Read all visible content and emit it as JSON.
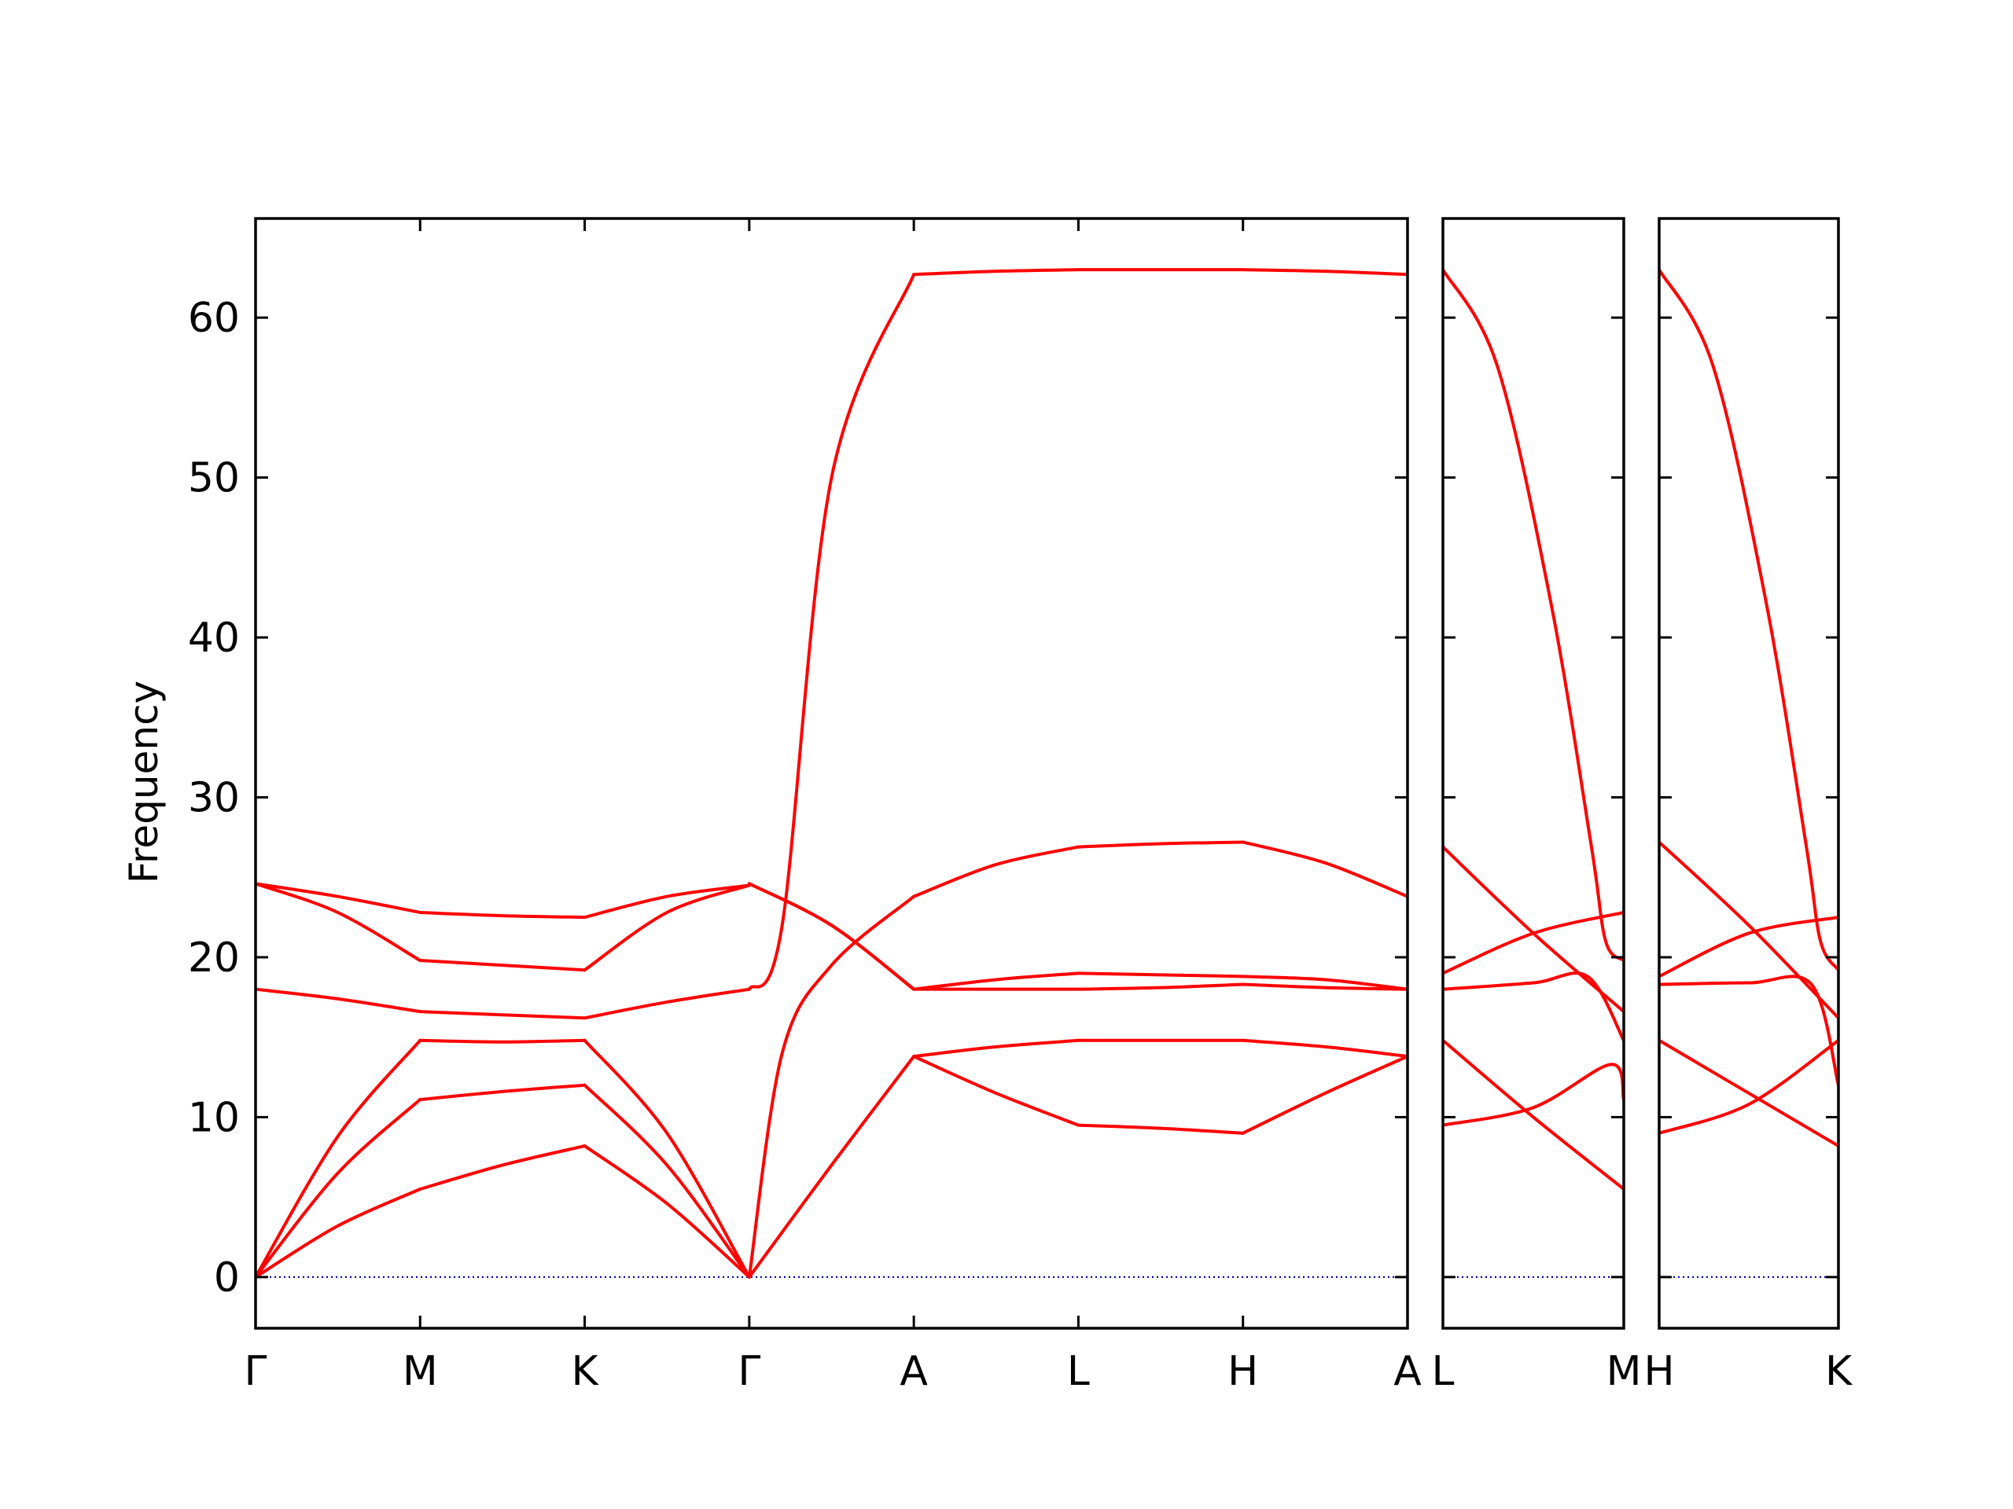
{
  "chart_data": {
    "type": "line",
    "ylabel": "Frequency",
    "ylim": [
      -3.2,
      66.2
    ],
    "yticks": [
      0,
      10,
      20,
      30,
      40,
      50,
      60
    ],
    "colors": {
      "bands": "#ff0000",
      "zero_line": "#0000cc",
      "axes": "#000000"
    },
    "grid": false,
    "panels": [
      {
        "x_labels": [
          "Γ",
          "M",
          "K",
          "Γ",
          "A",
          "L",
          "H",
          "A"
        ],
        "segments": [
          {
            "from": "Γ",
            "to": "M",
            "bands": [
              {
                "x": [
                  0,
                  0.5,
                  1
                ],
                "y": [
                  0,
                  3.2,
                  5.5
                ]
              },
              {
                "x": [
                  0,
                  0.5,
                  1
                ],
                "y": [
                  0,
                  6.5,
                  11.1
                ]
              },
              {
                "x": [
                  0,
                  0.5,
                  1
                ],
                "y": [
                  0,
                  8.8,
                  14.8
                ]
              },
              {
                "x": [
                  0,
                  0.5,
                  1
                ],
                "y": [
                  18.0,
                  17.4,
                  16.6
                ]
              },
              {
                "x": [
                  0,
                  0.5,
                  1
                ],
                "y": [
                  24.6,
                  22.8,
                  19.8
                ]
              },
              {
                "x": [
                  0,
                  0.5,
                  1
                ],
                "y": [
                  24.6,
                  23.8,
                  22.8
                ]
              }
            ]
          },
          {
            "from": "M",
            "to": "K",
            "bands": [
              {
                "x": [
                  0,
                  0.5,
                  1
                ],
                "y": [
                  5.5,
                  7.0,
                  8.2
                ]
              },
              {
                "x": [
                  0,
                  0.5,
                  1
                ],
                "y": [
                  11.1,
                  11.6,
                  12.0
                ]
              },
              {
                "x": [
                  0,
                  0.5,
                  1
                ],
                "y": [
                  14.8,
                  14.7,
                  14.8
                ]
              },
              {
                "x": [
                  0,
                  0.5,
                  1
                ],
                "y": [
                  16.6,
                  16.4,
                  16.2
                ]
              },
              {
                "x": [
                  0,
                  0.5,
                  1
                ],
                "y": [
                  19.8,
                  19.5,
                  19.2
                ]
              },
              {
                "x": [
                  0,
                  0.5,
                  1
                ],
                "y": [
                  22.8,
                  22.6,
                  22.5
                ]
              }
            ]
          },
          {
            "from": "K",
            "to": "Γ",
            "bands": [
              {
                "x": [
                  0,
                  0.5,
                  1
                ],
                "y": [
                  8.2,
                  4.6,
                  0
                ]
              },
              {
                "x": [
                  0,
                  0.5,
                  1
                ],
                "y": [
                  12.0,
                  7.0,
                  0
                ]
              },
              {
                "x": [
                  0,
                  0.5,
                  1
                ],
                "y": [
                  14.8,
                  9.0,
                  0
                ]
              },
              {
                "x": [
                  0,
                  0.5,
                  1
                ],
                "y": [
                  16.2,
                  17.2,
                  18.0
                ]
              },
              {
                "x": [
                  0,
                  0.5,
                  1
                ],
                "y": [
                  19.2,
                  22.8,
                  24.5
                ]
              },
              {
                "x": [
                  0,
                  0.5,
                  1
                ],
                "y": [
                  22.5,
                  23.8,
                  24.5
                ]
              }
            ]
          },
          {
            "from": "Γ",
            "to": "A",
            "bands": [
              {
                "x": [
                  0,
                  0.5,
                  1
                ],
                "y": [
                  0,
                  7.0,
                  13.8
                ]
              },
              {
                "x": [
                  0,
                  0.2,
                  0.5,
                  1
                ],
                "y": [
                  0,
                  14.0,
                  19.5,
                  23.8
                ]
              },
              {
                "x": [
                  0,
                  0.5,
                  1
                ],
                "y": [
                  24.6,
                  22.0,
                  18.0
                ]
              },
              {
                "x": [
                  0,
                  0.5,
                  1
                ],
                "y": [
                  24.6,
                  22.0,
                  18.0
                ]
              },
              {
                "x": [
                  0,
                  0.2,
                  0.5,
                  1
                ],
                "y": [
                  18.0,
                  22.0,
                  50.0,
                  62.7
                ]
              }
            ]
          },
          {
            "from": "A",
            "to": "L",
            "bands": [
              {
                "x": [
                  0,
                  0.5,
                  1
                ],
                "y": [
                  13.8,
                  11.5,
                  9.5
                ]
              },
              {
                "x": [
                  0,
                  0.5,
                  1
                ],
                "y": [
                  13.8,
                  14.4,
                  14.8
                ]
              },
              {
                "x": [
                  0,
                  0.5,
                  1
                ],
                "y": [
                  18.0,
                  18.0,
                  18.0
                ]
              },
              {
                "x": [
                  0,
                  0.5,
                  1
                ],
                "y": [
                  18.0,
                  18.6,
                  19.0
                ]
              },
              {
                "x": [
                  0,
                  0.5,
                  1
                ],
                "y": [
                  23.8,
                  25.8,
                  26.9
                ]
              },
              {
                "x": [
                  0,
                  0.5,
                  1
                ],
                "y": [
                  62.7,
                  62.9,
                  63.0
                ]
              }
            ]
          },
          {
            "from": "L",
            "to": "H",
            "bands": [
              {
                "x": [
                  0,
                  0.5,
                  1
                ],
                "y": [
                  9.5,
                  9.3,
                  9.0
                ]
              },
              {
                "x": [
                  0,
                  0.5,
                  1
                ],
                "y": [
                  14.8,
                  14.8,
                  14.8
                ]
              },
              {
                "x": [
                  0,
                  0.5,
                  1
                ],
                "y": [
                  18.0,
                  18.1,
                  18.3
                ]
              },
              {
                "x": [
                  0,
                  0.5,
                  1
                ],
                "y": [
                  19.0,
                  18.9,
                  18.8
                ]
              },
              {
                "x": [
                  0,
                  0.5,
                  1
                ],
                "y": [
                  26.9,
                  27.1,
                  27.2
                ]
              },
              {
                "x": [
                  0,
                  0.5,
                  1
                ],
                "y": [
                  63.0,
                  63.0,
                  63.0
                ]
              }
            ]
          },
          {
            "from": "H",
            "to": "A",
            "bands": [
              {
                "x": [
                  0,
                  0.5,
                  1
                ],
                "y": [
                  9.0,
                  11.5,
                  13.8
                ]
              },
              {
                "x": [
                  0,
                  0.5,
                  1
                ],
                "y": [
                  14.8,
                  14.4,
                  13.8
                ]
              },
              {
                "x": [
                  0,
                  0.5,
                  1
                ],
                "y": [
                  18.3,
                  18.1,
                  18.0
                ]
              },
              {
                "x": [
                  0,
                  0.5,
                  1
                ],
                "y": [
                  18.8,
                  18.6,
                  18.0
                ]
              },
              {
                "x": [
                  0,
                  0.5,
                  1
                ],
                "y": [
                  27.2,
                  25.9,
                  23.8
                ]
              },
              {
                "x": [
                  0,
                  0.5,
                  1
                ],
                "y": [
                  63.0,
                  62.9,
                  62.7
                ]
              }
            ]
          }
        ]
      },
      {
        "x_labels": [
          "L",
          "M"
        ],
        "segments": [
          {
            "from": "L",
            "to": "M",
            "bands": [
              {
                "x": [
                  0,
                  0.5,
                  0.93,
                  1
                ],
                "y": [
                  9.5,
                  10.6,
                  13.3,
                  11.1
                ]
              },
              {
                "x": [
                  0,
                  0.5,
                  1
                ],
                "y": [
                  14.8,
                  10.0,
                  5.5
                ]
              },
              {
                "x": [
                  0,
                  0.5,
                  0.8,
                  1
                ],
                "y": [
                  18.0,
                  18.4,
                  18.8,
                  14.8
                ]
              },
              {
                "x": [
                  0,
                  0.5,
                  1
                ],
                "y": [
                  19.0,
                  21.5,
                  22.8
                ]
              },
              {
                "x": [
                  0,
                  0.5,
                  1
                ],
                "y": [
                  26.9,
                  21.5,
                  16.6
                ]
              },
              {
                "x": [
                  0,
                  0.3,
                  0.6,
                  0.82,
                  0.9,
                  1
                ],
                "y": [
                  63.0,
                  57.0,
                  42.0,
                  27.0,
                  21.0,
                  19.8
                ]
              }
            ]
          }
        ]
      },
      {
        "x_labels": [
          "H",
          "K"
        ],
        "segments": [
          {
            "from": "H",
            "to": "K",
            "bands": [
              {
                "x": [
                  0,
                  0.5,
                  1
                ],
                "y": [
                  9.0,
                  10.8,
                  14.8
                ]
              },
              {
                "x": [
                  0,
                  0.5,
                  1
                ],
                "y": [
                  14.8,
                  11.5,
                  8.2
                ]
              },
              {
                "x": [
                  0,
                  0.5,
                  0.85,
                  1
                ],
                "y": [
                  18.3,
                  18.4,
                  18.3,
                  12.0
                ]
              },
              {
                "x": [
                  0,
                  0.5,
                  1
                ],
                "y": [
                  18.8,
                  21.5,
                  22.5
                ]
              },
              {
                "x": [
                  0,
                  0.5,
                  1
                ],
                "y": [
                  27.2,
                  22.0,
                  16.2
                ]
              },
              {
                "x": [
                  0,
                  0.3,
                  0.6,
                  0.82,
                  0.9,
                  1
                ],
                "y": [
                  63.0,
                  57.0,
                  42.0,
                  27.0,
                  21.0,
                  19.2
                ]
              }
            ]
          }
        ]
      }
    ]
  }
}
